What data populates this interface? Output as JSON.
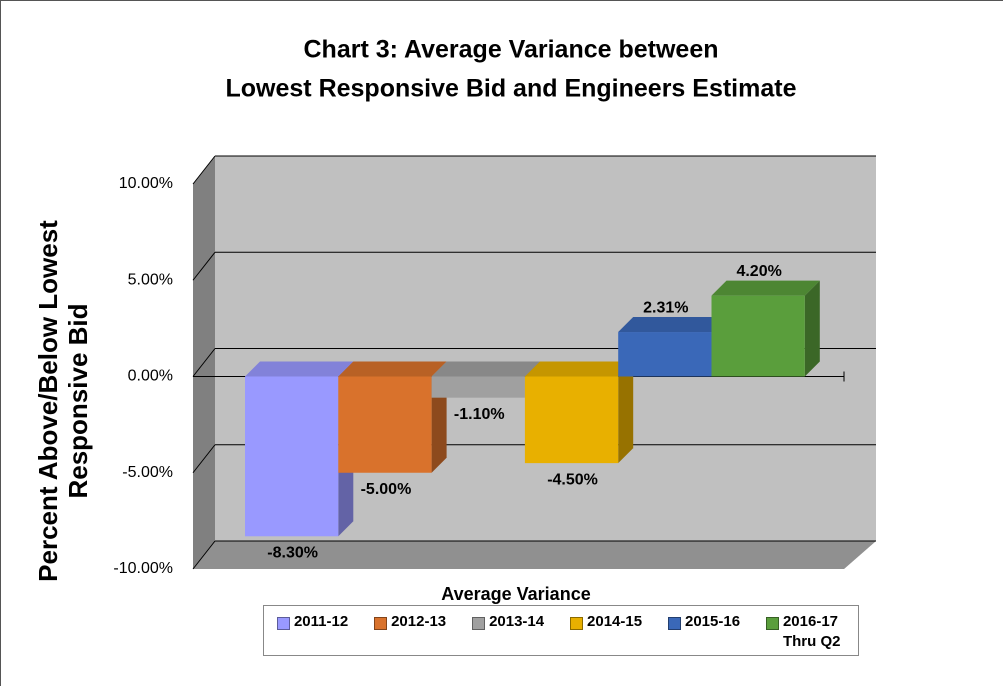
{
  "chart_data": {
    "type": "bar3d",
    "title": [
      "Chart 3: Average Variance between",
      "Lowest Responsive Bid and Engineers Estimate"
    ],
    "y_label": "Percent Above/Below Lowest Responsive Bid",
    "categories": [
      "Average Variance"
    ],
    "series": [
      {
        "name": "2011-12",
        "color": "#9999ff",
        "values": [
          -8.3
        ],
        "value_labels": [
          "-8.30%"
        ]
      },
      {
        "name": "2012-13",
        "color": "#d9722c",
        "values": [
          -5
        ],
        "value_labels": [
          "-5.00%"
        ]
      },
      {
        "name": "2013-14",
        "color": "#a0a0a0",
        "values": [
          -1.1
        ],
        "value_labels": [
          "-1.10%"
        ]
      },
      {
        "name": "2014-15",
        "color": "#e8b000",
        "values": [
          -4.5
        ],
        "value_labels": [
          "-4.50%"
        ]
      },
      {
        "name": "2015-16",
        "color": "#3a68b8",
        "values": [
          2.31
        ],
        "value_labels": [
          "2.31%"
        ]
      },
      {
        "name": "2016-17 Thru Q2",
        "color": "#5a9e3c",
        "values": [
          4.2
        ],
        "value_labels": [
          "4.20%"
        ]
      }
    ],
    "ylim": [
      -10,
      10
    ],
    "yticks": [
      {
        "value": -10,
        "label": "-10.00%"
      },
      {
        "value": -5,
        "label": "-5.00%"
      },
      {
        "value": 0,
        "label": "0.00%"
      },
      {
        "value": 5,
        "label": "5.00%"
      },
      {
        "value": 10,
        "label": "10.00%"
      }
    ],
    "grid": true,
    "legend": "bottom"
  }
}
